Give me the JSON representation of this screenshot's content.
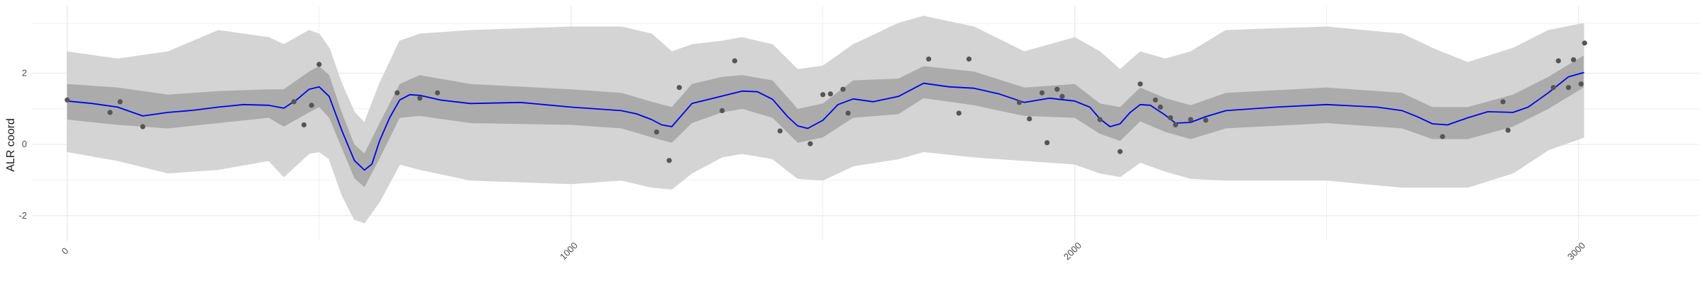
{
  "chart_data": {
    "type": "line",
    "title": "",
    "xlabel": "",
    "ylabel": "ALR coord",
    "xlim": [
      -70,
      3240
    ],
    "ylim": [
      -2.7,
      3.9
    ],
    "x_ticks": [
      0,
      1000,
      2000,
      3000
    ],
    "x_tick_labels": [
      "0",
      "1000",
      "2000",
      "3000"
    ],
    "y_ticks": [
      -2,
      0,
      2
    ],
    "y_tick_labels": [
      "-2",
      "0",
      "2"
    ],
    "grid": true,
    "legend": "none",
    "colors": {
      "mean_line": "#0000ee",
      "inner_band": "#ababab",
      "outer_band": "#d4d4d4",
      "points": "#555555",
      "grid": "#ebebeb"
    },
    "series": [
      {
        "kind": "mean",
        "x": [
          0,
          50,
          100,
          150,
          200,
          250,
          300,
          350,
          400,
          430,
          455,
          480,
          500,
          520,
          545,
          570,
          590,
          605,
          620,
          640,
          660,
          680,
          700,
          740,
          800,
          900,
          1000,
          1050,
          1100,
          1130,
          1160,
          1180,
          1200,
          1240,
          1300,
          1340,
          1370,
          1400,
          1430,
          1450,
          1470,
          1500,
          1530,
          1560,
          1600,
          1650,
          1700,
          1750,
          1800,
          1850,
          1900,
          1950,
          2000,
          2030,
          2050,
          2070,
          2090,
          2110,
          2130,
          2150,
          2180,
          2200,
          2230,
          2260,
          2300,
          2400,
          2500,
          2600,
          2650,
          2680,
          2710,
          2740,
          2780,
          2820,
          2870,
          2900,
          2940,
          2980,
          3010
        ],
        "y": [
          1.22,
          1.15,
          1.05,
          0.8,
          0.9,
          0.96,
          1.05,
          1.12,
          1.1,
          1.02,
          1.25,
          1.55,
          1.62,
          1.35,
          0.4,
          -0.45,
          -0.72,
          -0.55,
          0.1,
          0.75,
          1.25,
          1.4,
          1.38,
          1.25,
          1.15,
          1.18,
          1.05,
          1.0,
          0.95,
          0.86,
          0.7,
          0.55,
          0.5,
          1.15,
          1.36,
          1.5,
          1.48,
          1.27,
          0.78,
          0.52,
          0.45,
          0.68,
          1.12,
          1.28,
          1.2,
          1.35,
          1.72,
          1.62,
          1.58,
          1.42,
          1.18,
          1.3,
          1.22,
          1.05,
          0.72,
          0.5,
          0.58,
          0.9,
          1.12,
          1.1,
          0.82,
          0.6,
          0.62,
          0.78,
          0.95,
          1.05,
          1.12,
          1.05,
          0.95,
          0.78,
          0.58,
          0.55,
          0.75,
          0.92,
          0.9,
          1.05,
          1.45,
          1.9,
          2.02
        ]
      },
      {
        "kind": "band_inner",
        "x": [
          0,
          100,
          200,
          300,
          400,
          430,
          480,
          500,
          520,
          545,
          570,
          590,
          620,
          660,
          700,
          800,
          1000,
          1100,
          1160,
          1200,
          1240,
          1300,
          1340,
          1400,
          1450,
          1500,
          1560,
          1650,
          1700,
          1800,
          1900,
          2000,
          2050,
          2090,
          2130,
          2180,
          2230,
          2300,
          2500,
          2650,
          2710,
          2780,
          2870,
          2940,
          3010
        ],
        "lo": [
          0.7,
          0.55,
          0.45,
          0.6,
          0.75,
          0.5,
          0.9,
          1.05,
          0.75,
          -0.1,
          -0.95,
          -1.2,
          -0.4,
          0.75,
          0.8,
          0.6,
          0.55,
          0.45,
          0.2,
          0.05,
          0.6,
          0.9,
          1.0,
          0.75,
          0.05,
          0.2,
          0.75,
          0.85,
          1.3,
          1.1,
          0.8,
          0.75,
          0.3,
          0.1,
          0.65,
          0.35,
          0.15,
          0.45,
          0.6,
          0.45,
          0.15,
          0.15,
          0.5,
          1.0,
          1.6
        ],
        "hi": [
          1.7,
          1.6,
          1.4,
          1.5,
          1.55,
          1.55,
          2.05,
          2.2,
          1.95,
          0.9,
          0.0,
          -0.25,
          0.6,
          1.7,
          1.95,
          1.7,
          1.55,
          1.45,
          1.2,
          1.05,
          1.7,
          1.9,
          1.95,
          1.8,
          1.0,
          1.15,
          1.8,
          1.85,
          2.2,
          2.05,
          1.6,
          1.7,
          1.15,
          1.05,
          1.6,
          1.3,
          1.1,
          1.45,
          1.6,
          1.45,
          1.05,
          1.05,
          1.4,
          1.9,
          2.5
        ]
      },
      {
        "kind": "band_outer",
        "x": [
          0,
          100,
          200,
          300,
          400,
          430,
          480,
          500,
          520,
          545,
          570,
          590,
          620,
          660,
          700,
          800,
          1000,
          1100,
          1160,
          1200,
          1240,
          1300,
          1340,
          1400,
          1450,
          1500,
          1560,
          1650,
          1700,
          1800,
          1900,
          2000,
          2050,
          2090,
          2130,
          2180,
          2230,
          2300,
          2500,
          2650,
          2710,
          2780,
          2870,
          2940,
          3010
        ],
        "lo": [
          -0.2,
          -0.45,
          -0.8,
          -0.7,
          -0.45,
          -0.9,
          -0.25,
          -0.2,
          -0.4,
          -1.4,
          -2.1,
          -2.2,
          -1.6,
          -0.55,
          -0.7,
          -1.0,
          -1.1,
          -1.0,
          -1.2,
          -1.25,
          -0.8,
          -0.35,
          -0.25,
          -0.4,
          -0.95,
          -1.0,
          -0.6,
          -0.4,
          -0.2,
          -0.35,
          -0.45,
          -0.55,
          -0.8,
          -0.9,
          -0.5,
          -0.75,
          -0.95,
          -1.0,
          -1.0,
          -1.2,
          -1.2,
          -1.2,
          -0.8,
          -0.15,
          0.2
        ],
        "hi": [
          2.6,
          2.4,
          2.6,
          3.2,
          3.0,
          2.8,
          3.2,
          3.1,
          2.7,
          1.7,
          0.9,
          0.6,
          1.7,
          2.9,
          3.1,
          3.2,
          3.3,
          3.3,
          3.1,
          2.6,
          2.8,
          2.9,
          3.0,
          2.8,
          2.1,
          2.2,
          2.8,
          3.4,
          3.6,
          3.3,
          2.6,
          3.0,
          2.6,
          2.1,
          2.6,
          2.4,
          2.6,
          3.2,
          3.3,
          3.1,
          2.7,
          2.3,
          2.7,
          3.2,
          3.4
        ]
      },
      {
        "kind": "points",
        "x": [
          0,
          85,
          105,
          150,
          450,
          470,
          485,
          500,
          655,
          700,
          735,
          1170,
          1195,
          1215,
          1300,
          1325,
          1415,
          1475,
          1500,
          1515,
          1540,
          1550,
          1710,
          1770,
          1790,
          1890,
          1910,
          1935,
          1945,
          1965,
          1975,
          2050,
          2090,
          2130,
          2160,
          2170,
          2190,
          2200,
          2230,
          2260,
          2730,
          2850,
          2860,
          2950,
          2960,
          2980,
          2990,
          3005,
          3012
        ],
        "y": [
          1.25,
          0.9,
          1.2,
          0.5,
          1.2,
          0.55,
          1.1,
          2.25,
          1.45,
          1.3,
          1.45,
          0.35,
          -0.45,
          1.6,
          0.95,
          2.35,
          0.38,
          0.02,
          1.4,
          1.42,
          1.55,
          0.88,
          2.4,
          0.88,
          2.4,
          1.18,
          0.72,
          1.45,
          0.05,
          1.55,
          1.35,
          0.7,
          -0.2,
          1.7,
          1.25,
          1.05,
          0.75,
          0.55,
          0.7,
          0.68,
          0.22,
          1.2,
          0.4,
          1.6,
          2.35,
          1.6,
          2.38,
          1.7,
          2.85
        ]
      }
    ]
  }
}
